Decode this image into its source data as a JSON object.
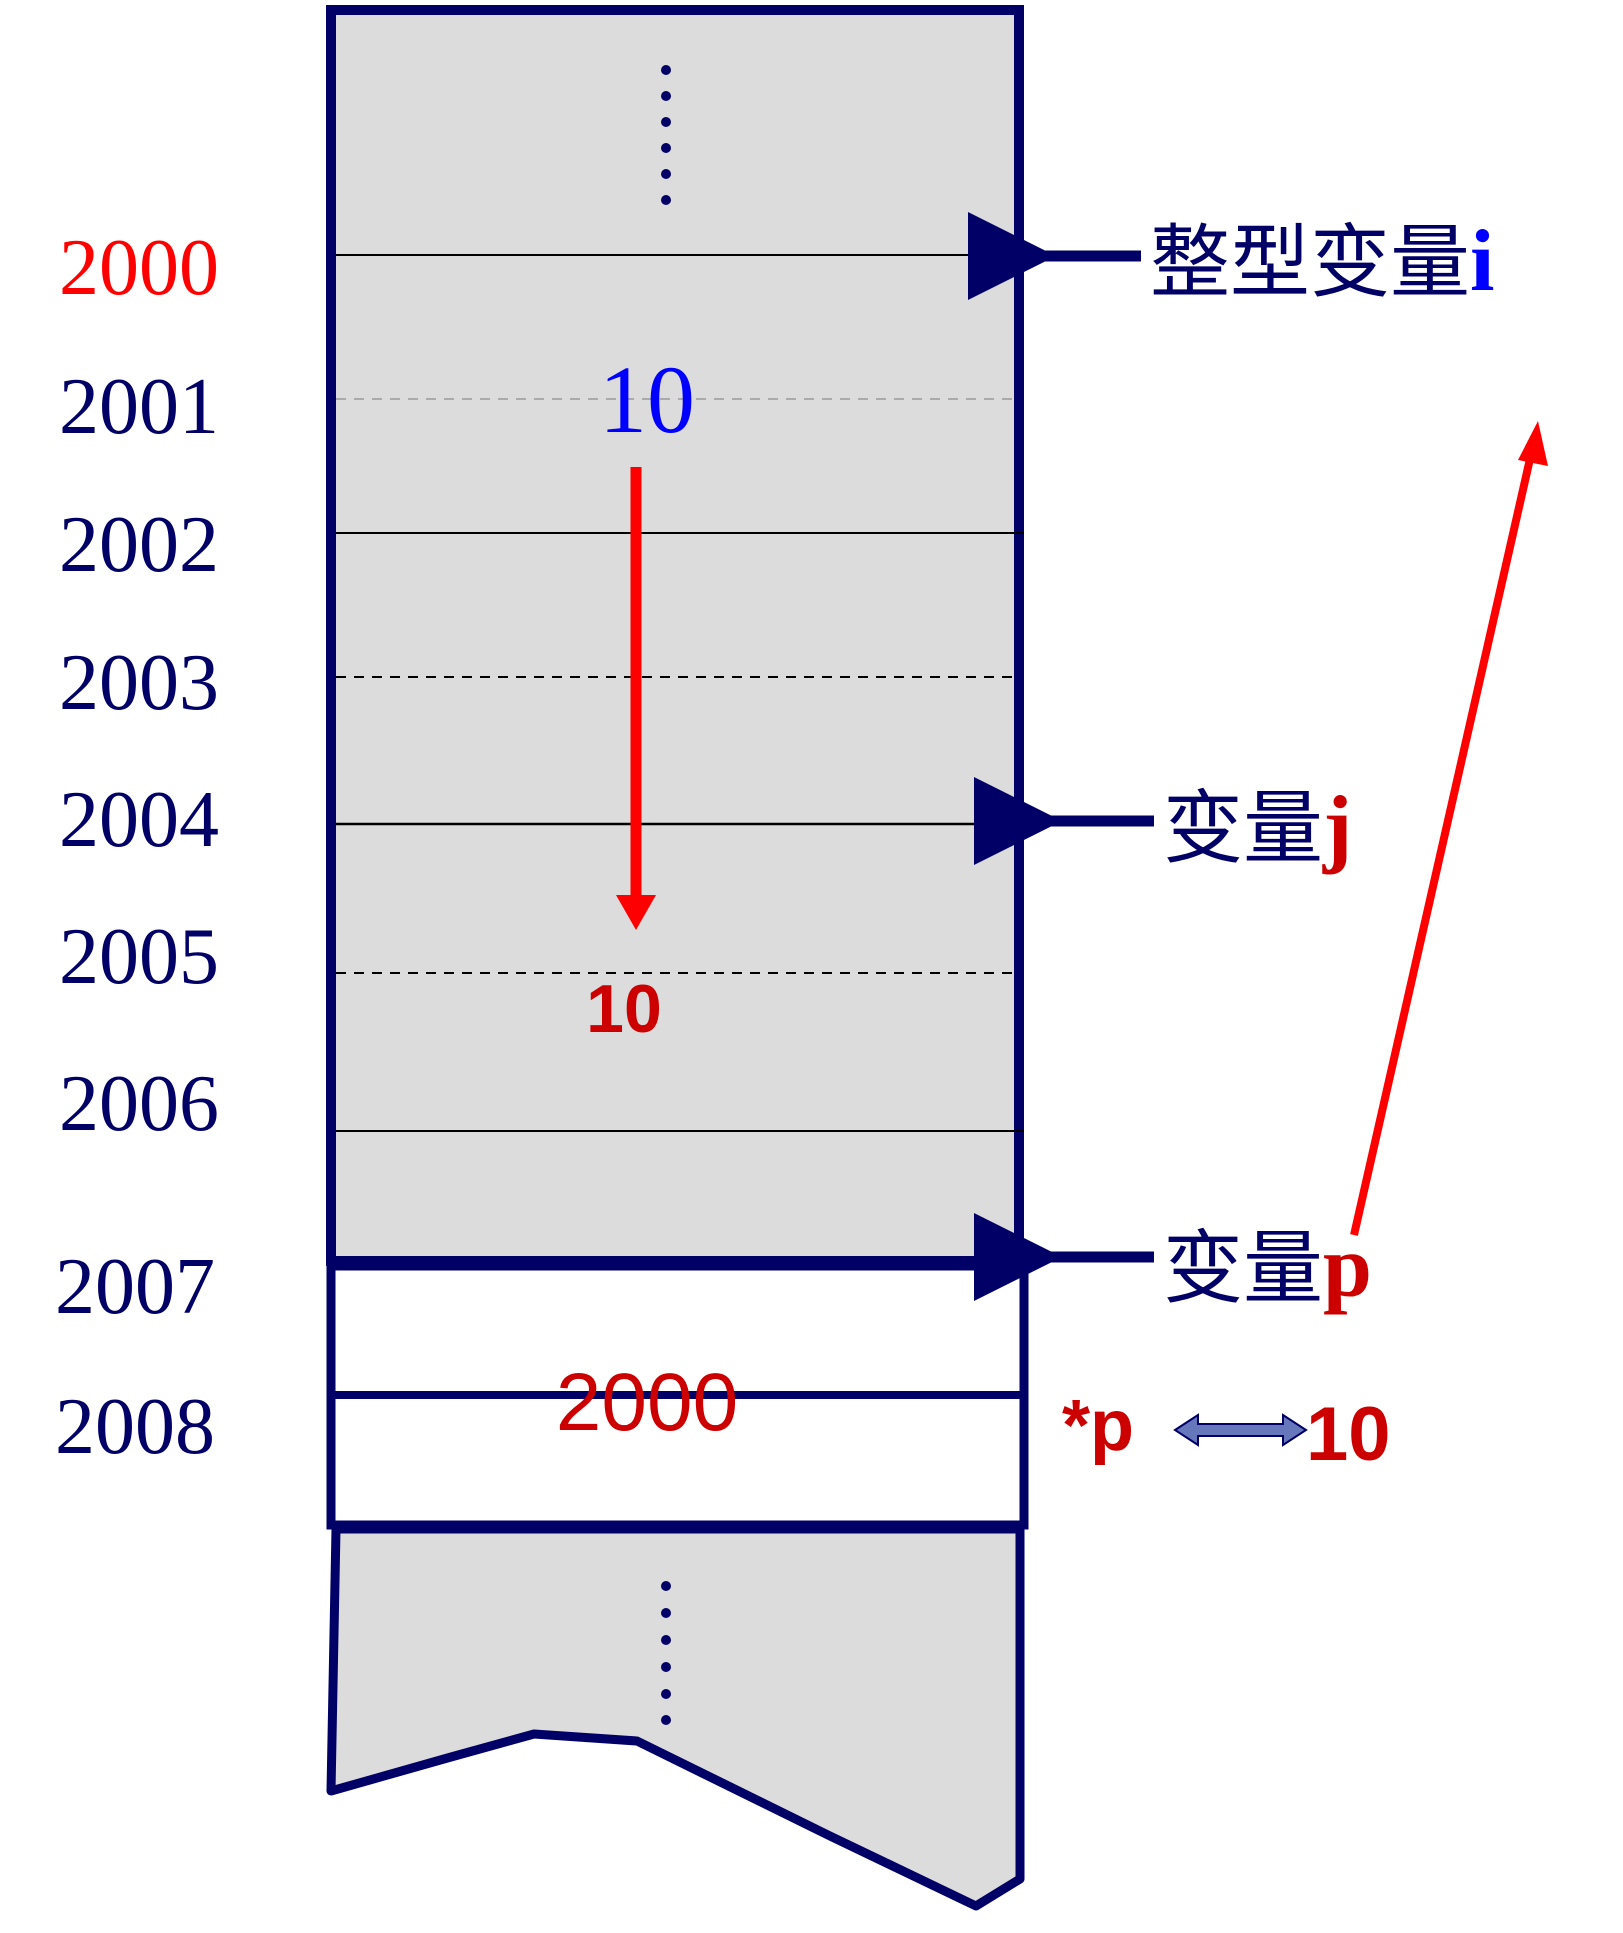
{
  "addresses": [
    {
      "text": "2000",
      "color": "#ff0000"
    },
    {
      "text": "2001",
      "color": "#000066"
    },
    {
      "text": "2002",
      "color": "#000066"
    },
    {
      "text": "2003",
      "color": "#000066"
    },
    {
      "text": "2004",
      "color": "#000066"
    },
    {
      "text": "2005",
      "color": "#000066"
    },
    {
      "text": "2006",
      "color": "#000066"
    },
    {
      "text": "2007",
      "color": "#000066"
    },
    {
      "text": "2008",
      "color": "#000066"
    }
  ],
  "memory": {
    "value_i": "10",
    "value_j": "10",
    "value_p": "2000"
  },
  "labels": {
    "i_prefix": "整型变量",
    "i_name": "i",
    "j_prefix": "变量",
    "j_name": "j",
    "p_prefix": "变量",
    "p_name": "p",
    "deref": "*p",
    "deref_value": "10"
  },
  "colors": {
    "navy": "#000066",
    "red": "#ff0000",
    "darkred": "#cc0000",
    "blue": "#0000ff",
    "cell_fill": "#dcdcdc"
  }
}
